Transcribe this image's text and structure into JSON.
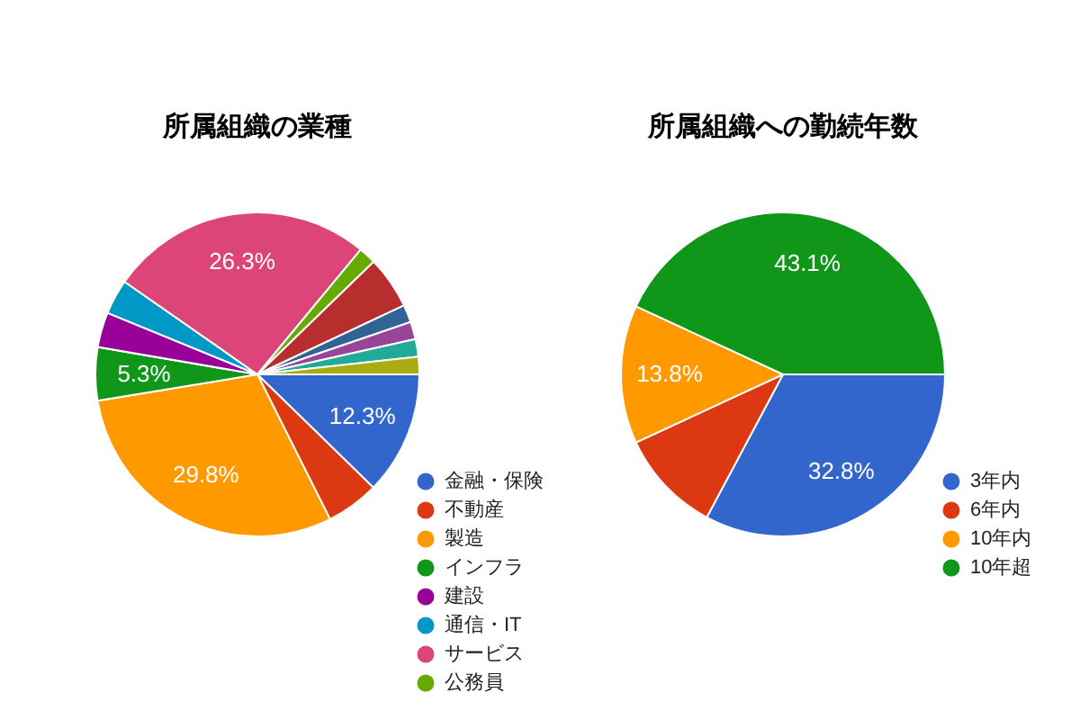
{
  "chart_data": [
    {
      "type": "pie",
      "title": "所属組織の業種",
      "categories": [
        "金融・保険",
        "不動産",
        "製造",
        "インフラ",
        "建設",
        "通信・IT",
        "サービス",
        "公務員",
        null,
        null,
        null,
        null,
        null
      ],
      "values": [
        12.3,
        5.3,
        29.8,
        5.3,
        3.5,
        3.5,
        26.3,
        1.75,
        5.25,
        1.75,
        1.75,
        1.75,
        1.75
      ],
      "colors": [
        "#3366cc",
        "#dc3912",
        "#ff9900",
        "#109618",
        "#990099",
        "#0099c6",
        "#dd4477",
        "#66aa00",
        "#b82e2e",
        "#316395",
        "#994499",
        "#22aa99",
        "#aaaa11"
      ],
      "value_labels": [
        "12.3%",
        null,
        "29.8%",
        "5.3%",
        null,
        null,
        "26.3%",
        null,
        null,
        null,
        null,
        null,
        null
      ],
      "legend": "bottom right"
    },
    {
      "type": "pie",
      "title": "所属組織への勤続年数",
      "categories": [
        "3年内",
        "6年内",
        "10年内",
        "10年超"
      ],
      "values": [
        32.8,
        10.3,
        13.8,
        43.1
      ],
      "colors": [
        "#3366cc",
        "#dc3912",
        "#ff9900",
        "#109618"
      ],
      "value_labels": [
        "32.8%",
        null,
        "13.8%",
        "43.1%"
      ],
      "legend": "bottom right"
    }
  ]
}
